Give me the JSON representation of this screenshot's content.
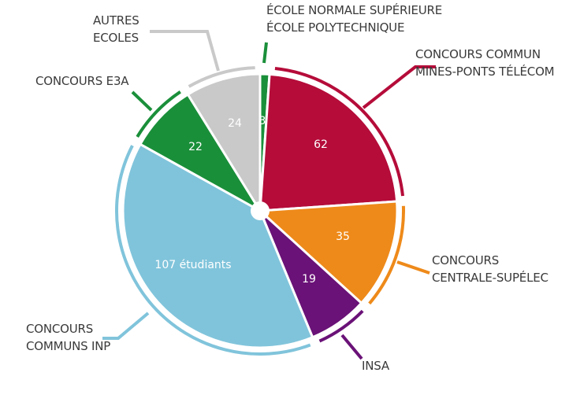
{
  "chart_data": {
    "type": "pie",
    "start": "top",
    "direction": "clockwise",
    "slices": [
      {
        "label_lines": [
          "ÉCOLE NORMALE SUPÉRIEURE",
          "ÉCOLE POLYTECHNIQUE"
        ],
        "value": 3,
        "value_text": "3",
        "color": "#1a8f3a"
      },
      {
        "label_lines": [
          "CONCOURS COMMUN",
          "MINES-PONTS TÉLÉCOM"
        ],
        "value": 62,
        "value_text": "62",
        "color": "#b50c3a"
      },
      {
        "label_lines": [
          "CONCOURS",
          "CENTRALE-SUPÉLEC"
        ],
        "value": 35,
        "value_text": "35",
        "color": "#ee8a1a"
      },
      {
        "label_lines": [
          "INSA"
        ],
        "value": 19,
        "value_text": "19",
        "color": "#6a1277"
      },
      {
        "label_lines": [
          "CONCOURS",
          "COMMUNS INP"
        ],
        "value": 107,
        "value_text": "107 étudiants",
        "color": "#80c4db"
      },
      {
        "label_lines": [
          "CONCOURS E3A"
        ],
        "value": 22,
        "value_text": "22",
        "color": "#1a8f3a"
      },
      {
        "label_lines": [
          "AUTRES",
          "ECOLES"
        ],
        "value": 24,
        "value_text": "24",
        "color": "#c9c9c9"
      }
    ]
  }
}
